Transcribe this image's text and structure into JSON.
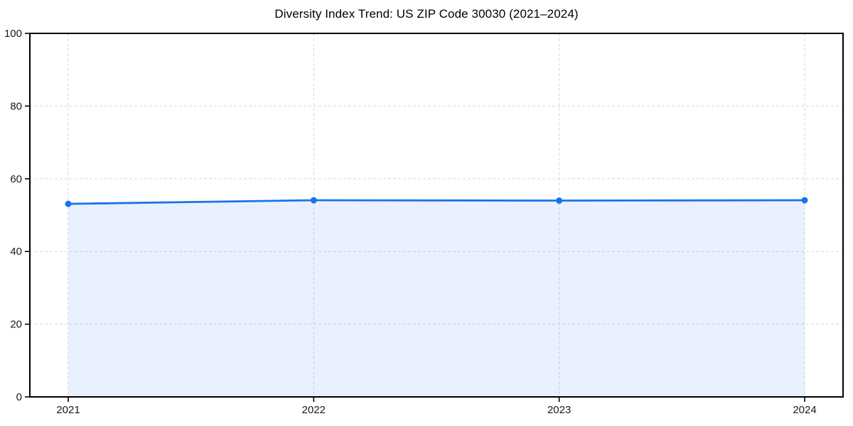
{
  "figure": {
    "background_color": "#ffffff"
  },
  "chart_data": {
    "type": "area",
    "title": "Diversity Index Trend: US ZIP Code 30030 (2021–2024)",
    "x": [
      2021,
      2022,
      2023,
      2024
    ],
    "series": [
      {
        "name": "Diversity Index",
        "values": [
          53.1,
          54.1,
          54.0,
          54.1
        ]
      }
    ],
    "xlabel": "",
    "ylabel": "",
    "ylim": [
      0,
      100
    ],
    "yticks": [
      0,
      20,
      40,
      60,
      80,
      100
    ],
    "xtick_labels": [
      "2021",
      "2022",
      "2023",
      "2024"
    ],
    "grid": true,
    "grid_style": "dashed",
    "legend_position": "none",
    "line_color": "#1a73e8",
    "marker": "circle",
    "fill_color": "#1a73e8",
    "fill_opacity": 0.1,
    "grid_color": "#d9d9d9",
    "axis_color": "#000000",
    "tick_label_color": "#1a1a1a"
  }
}
